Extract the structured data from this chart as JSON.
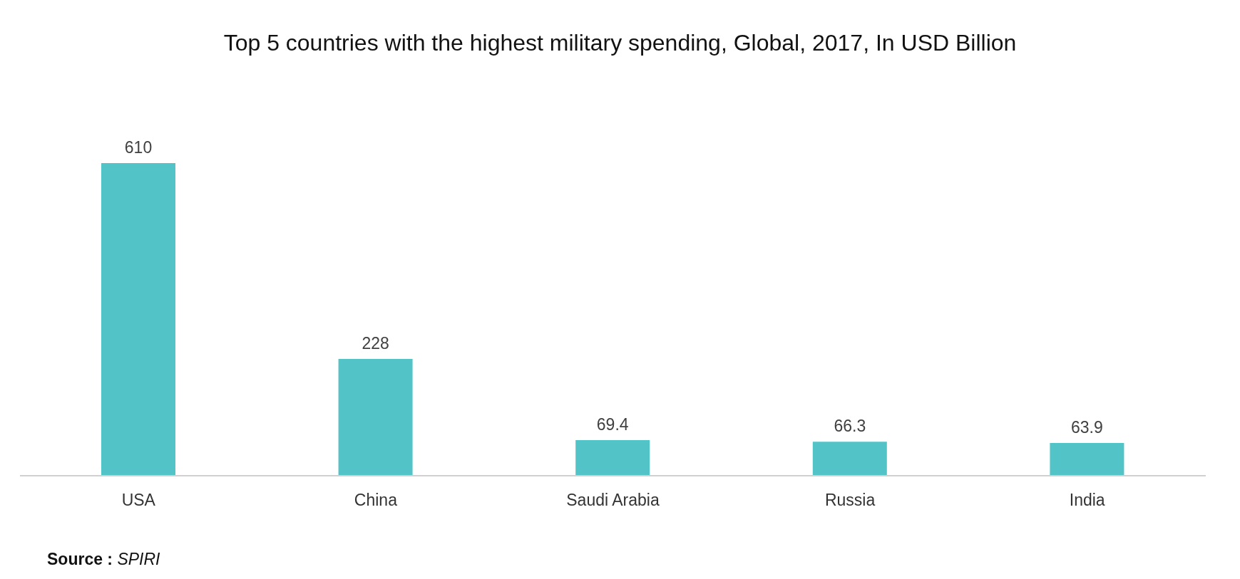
{
  "chart_data": {
    "type": "bar",
    "title": "Top 5 countries with the highest military spending, Global, 2017, In USD Billion",
    "categories": [
      "USA",
      "China",
      "Saudi Arabia",
      "Russia",
      "India"
    ],
    "values": [
      610,
      228,
      69.4,
      66.3,
      63.9
    ],
    "color": "#52c4c7",
    "data_labels": true,
    "annotations": [
      "Source : SPIRI"
    ]
  }
}
